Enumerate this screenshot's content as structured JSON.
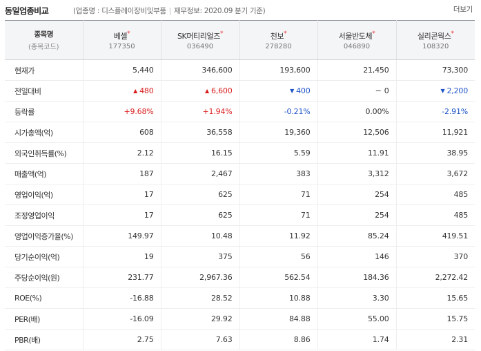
{
  "header": {
    "title": "동일업종비교",
    "industry_label": "(업종명 : 디스플레이장비및부품",
    "finance_label": "재무정보: 2020.09 분기 기준)",
    "more_label": "더보기"
  },
  "table": {
    "corner": {
      "line1": "종목명",
      "line2": "(종목코드)"
    },
    "companies": [
      {
        "name": "베셀",
        "code": "177350"
      },
      {
        "name": "SK머티리얼즈",
        "code": "036490"
      },
      {
        "name": "천보",
        "code": "278280"
      },
      {
        "name": "서울반도체",
        "code": "046890"
      },
      {
        "name": "실리콘웍스",
        "code": "108320"
      }
    ],
    "star": "*",
    "rows": [
      {
        "label": "현재가",
        "values": [
          "5,440",
          "346,600",
          "193,600",
          "21,450",
          "73,300"
        ]
      },
      {
        "label": "전일대비",
        "values": [
          "480",
          "6,600",
          "400",
          "0",
          "2,200"
        ],
        "dirs": [
          "up",
          "up",
          "down",
          "flat",
          "down"
        ]
      },
      {
        "label": "등락률",
        "values": [
          "+9.68%",
          "+1.94%",
          "-0.21%",
          "0.00%",
          "-2.91%"
        ],
        "dirs": [
          "up",
          "up",
          "down",
          "flat",
          "down"
        ]
      },
      {
        "label": "시가총액(억)",
        "values": [
          "608",
          "36,558",
          "19,360",
          "12,506",
          "11,921"
        ]
      },
      {
        "label": "외국인취득률(%)",
        "values": [
          "2.12",
          "16.15",
          "5.59",
          "11.91",
          "38.95"
        ]
      },
      {
        "label": "매출액(억)",
        "values": [
          "187",
          "2,467",
          "383",
          "3,312",
          "3,672"
        ]
      },
      {
        "label": "영업이익(억)",
        "values": [
          "17",
          "625",
          "71",
          "254",
          "485"
        ]
      },
      {
        "label": "조정영업이익",
        "values": [
          "17",
          "625",
          "71",
          "254",
          "485"
        ]
      },
      {
        "label": "영업이익증가율(%)",
        "values": [
          "149.97",
          "10.48",
          "11.92",
          "85.24",
          "419.51"
        ]
      },
      {
        "label": "당기순이익(억)",
        "values": [
          "19",
          "375",
          "56",
          "146",
          "370"
        ]
      },
      {
        "label": "주당순이익(원)",
        "values": [
          "231.77",
          "2,967.36",
          "562.54",
          "184.36",
          "2,272.42"
        ]
      },
      {
        "label": "ROE(%)",
        "values": [
          "-16.88",
          "28.52",
          "10.88",
          "3.30",
          "15.65"
        ]
      },
      {
        "label": "PER(배)",
        "values": [
          "-16.09",
          "29.92",
          "84.88",
          "55.00",
          "15.75"
        ]
      },
      {
        "label": "PBR(배)",
        "values": [
          "2.75",
          "7.63",
          "8.86",
          "1.74",
          "2.31"
        ]
      }
    ]
  },
  "colors": {
    "up": "#d91d1d",
    "down": "#1d52c8"
  }
}
